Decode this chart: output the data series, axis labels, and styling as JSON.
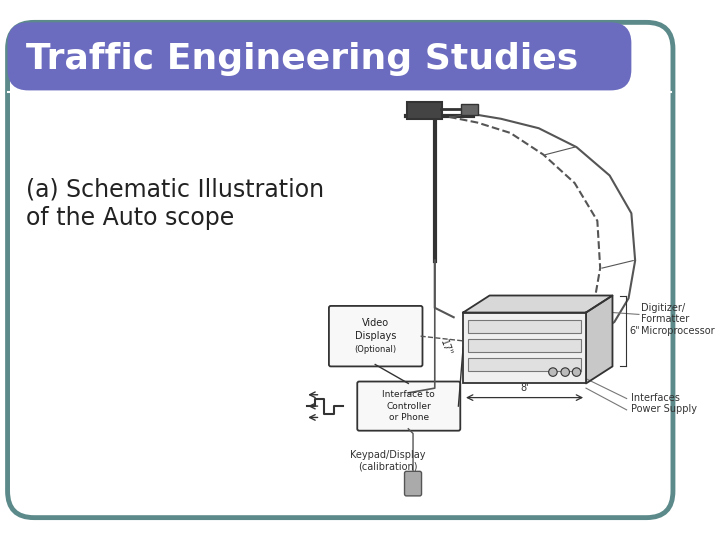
{
  "title": "Traffic Engineering Studies",
  "subtitle_line1": "(a) Schematic Illustration",
  "subtitle_line2": "of the Auto scope",
  "title_bg_color": "#6B6BBF",
  "title_text_color": "#ffffff",
  "body_bg_color": "#ffffff",
  "outer_bg_color": "#ffffff",
  "border_color": "#5C8A8A",
  "title_fontsize": 26,
  "subtitle_fontsize": 17,
  "diagram_color": "#333333",
  "diagram_light": "#f0f0f0",
  "diagram_mid": "#cccccc"
}
